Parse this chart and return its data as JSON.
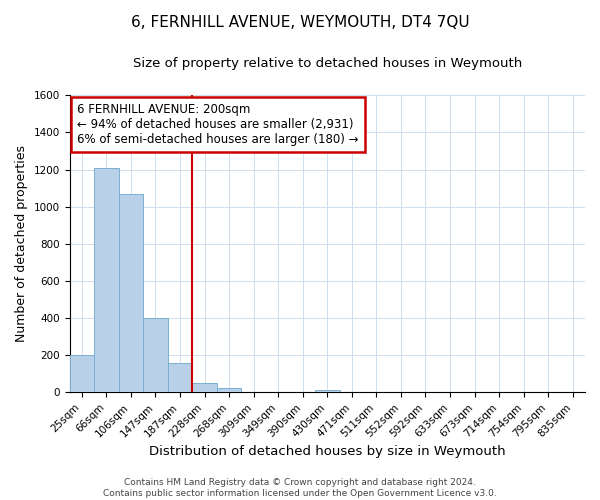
{
  "title": "6, FERNHILL AVENUE, WEYMOUTH, DT4 7QU",
  "subtitle": "Size of property relative to detached houses in Weymouth",
  "xlabel": "Distribution of detached houses by size in Weymouth",
  "ylabel": "Number of detached properties",
  "bar_labels": [
    "25sqm",
    "66sqm",
    "106sqm",
    "147sqm",
    "187sqm",
    "228sqm",
    "268sqm",
    "309sqm",
    "349sqm",
    "390sqm",
    "430sqm",
    "471sqm",
    "511sqm",
    "552sqm",
    "592sqm",
    "633sqm",
    "673sqm",
    "714sqm",
    "754sqm",
    "795sqm",
    "835sqm"
  ],
  "bar_values": [
    200,
    1210,
    1070,
    400,
    160,
    50,
    25,
    0,
    0,
    0,
    15,
    0,
    0,
    0,
    0,
    0,
    0,
    0,
    0,
    0,
    0
  ],
  "bar_color": "#b8d0e8",
  "bar_edge_color": "#7aafd0",
  "vline_x": 4.5,
  "vline_color": "#cc0000",
  "ylim": [
    0,
    1600
  ],
  "annotation_title": "6 FERNHILL AVENUE: 200sqm",
  "annotation_line1": "← 94% of detached houses are smaller (2,931)",
  "annotation_line2": "6% of semi-detached houses are larger (180) →",
  "annotation_box_edgecolor": "#cc0000",
  "footer_line1": "Contains HM Land Registry data © Crown copyright and database right 2024.",
  "footer_line2": "Contains public sector information licensed under the Open Government Licence v3.0.",
  "title_fontsize": 11,
  "subtitle_fontsize": 9.5,
  "tick_fontsize": 7.5,
  "ylabel_fontsize": 9,
  "xlabel_fontsize": 9.5,
  "annotation_fontsize": 8.5,
  "footer_fontsize": 6.5
}
